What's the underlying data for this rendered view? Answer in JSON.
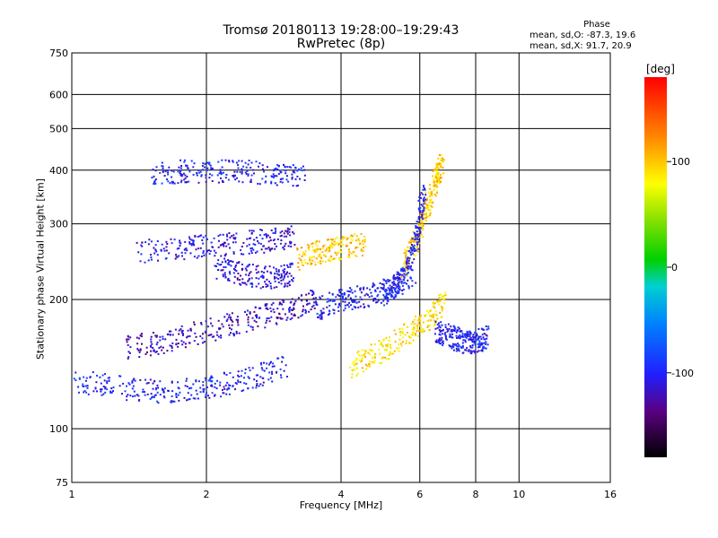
{
  "title_line1": "Tromsø 20180113 19:28:00–19:29:43",
  "title_line2": "RwPretec (8p)",
  "phase": {
    "heading": "Phase",
    "line_o": "mean, sd,O: -87.3, 19.6",
    "line_x": "mean, sd,X:  91.7, 20.9"
  },
  "colorbar": {
    "unit": "[deg]",
    "ticks": [
      {
        "value": 100,
        "label": "100"
      },
      {
        "value": 0,
        "label": "0"
      },
      {
        "value": -100,
        "label": "-100"
      }
    ],
    "range": [
      -180,
      180
    ]
  },
  "chart_data": {
    "type": "scatter",
    "title": "Tromsø 20180113 19:28:00–19:29:43",
    "subtitle": "RwPretec (8p)",
    "xlabel": "Frequency [MHz]",
    "ylabel": "Stationary phase Virtual Height [km]",
    "x_scale": "log",
    "y_scale": "log",
    "xlim": [
      1,
      16
    ],
    "ylim": [
      75,
      750
    ],
    "grid": true,
    "x_ticks": [
      1,
      2,
      4,
      6,
      8,
      10,
      16
    ],
    "x_tick_labels": [
      "1",
      "2",
      "4",
      "6",
      "8",
      "10",
      "16"
    ],
    "y_ticks": [
      75,
      100,
      200,
      300,
      400,
      500,
      600,
      750
    ],
    "y_tick_labels": [
      "75",
      "100",
      "200",
      "300",
      "400",
      "500",
      "600",
      "750"
    ],
    "color_by": "phase [deg]",
    "traces": [
      {
        "x": [
          1.0,
          1.3,
          1.6,
          2.0,
          2.4,
          3.0
        ],
        "y": [
          130,
          125,
          122,
          125,
          130,
          140
        ],
        "phase": -100
      },
      {
        "x": [
          1.3,
          1.6,
          2.0,
          2.5,
          3.0,
          3.5
        ],
        "y": [
          155,
          160,
          170,
          180,
          190,
          200
        ],
        "phase": -120
      },
      {
        "x": [
          1.5,
          1.8,
          2.2,
          2.8,
          3.3
        ],
        "y": [
          395,
          400,
          400,
          395,
          390
        ],
        "phase": -100
      },
      {
        "x": [
          1.4,
          1.8,
          2.2,
          2.7,
          3.1
        ],
        "y": [
          260,
          265,
          270,
          275,
          280
        ],
        "phase": -110
      },
      {
        "x": [
          2.1,
          2.4,
          2.8,
          3.1
        ],
        "y": [
          240,
          230,
          225,
          230
        ],
        "phase": -110
      },
      {
        "x": [
          3.2,
          3.6,
          4.0,
          4.5
        ],
        "y": [
          250,
          260,
          265,
          270
        ],
        "phase": 100
      },
      {
        "x": [
          3.5,
          4.0,
          4.6,
          5.2,
          5.8
        ],
        "y": [
          190,
          200,
          205,
          215,
          230
        ],
        "phase": -100
      },
      {
        "x": [
          4.2,
          4.8,
          5.5,
          6.2,
          6.8
        ],
        "y": [
          140,
          150,
          165,
          180,
          200
        ],
        "phase": 90
      },
      {
        "x": [
          5.5,
          5.9,
          6.2,
          6.5,
          6.7
        ],
        "y": [
          240,
          280,
          330,
          380,
          420
        ],
        "phase": 100
      },
      {
        "x": [
          5.0,
          5.5,
          5.9,
          6.1
        ],
        "y": [
          200,
          230,
          280,
          360
        ],
        "phase": -100
      },
      {
        "x": [
          6.5,
          7.0,
          7.5,
          8.0,
          8.5
        ],
        "y": [
          170,
          165,
          160,
          160,
          165
        ],
        "phase": -100
      }
    ]
  }
}
